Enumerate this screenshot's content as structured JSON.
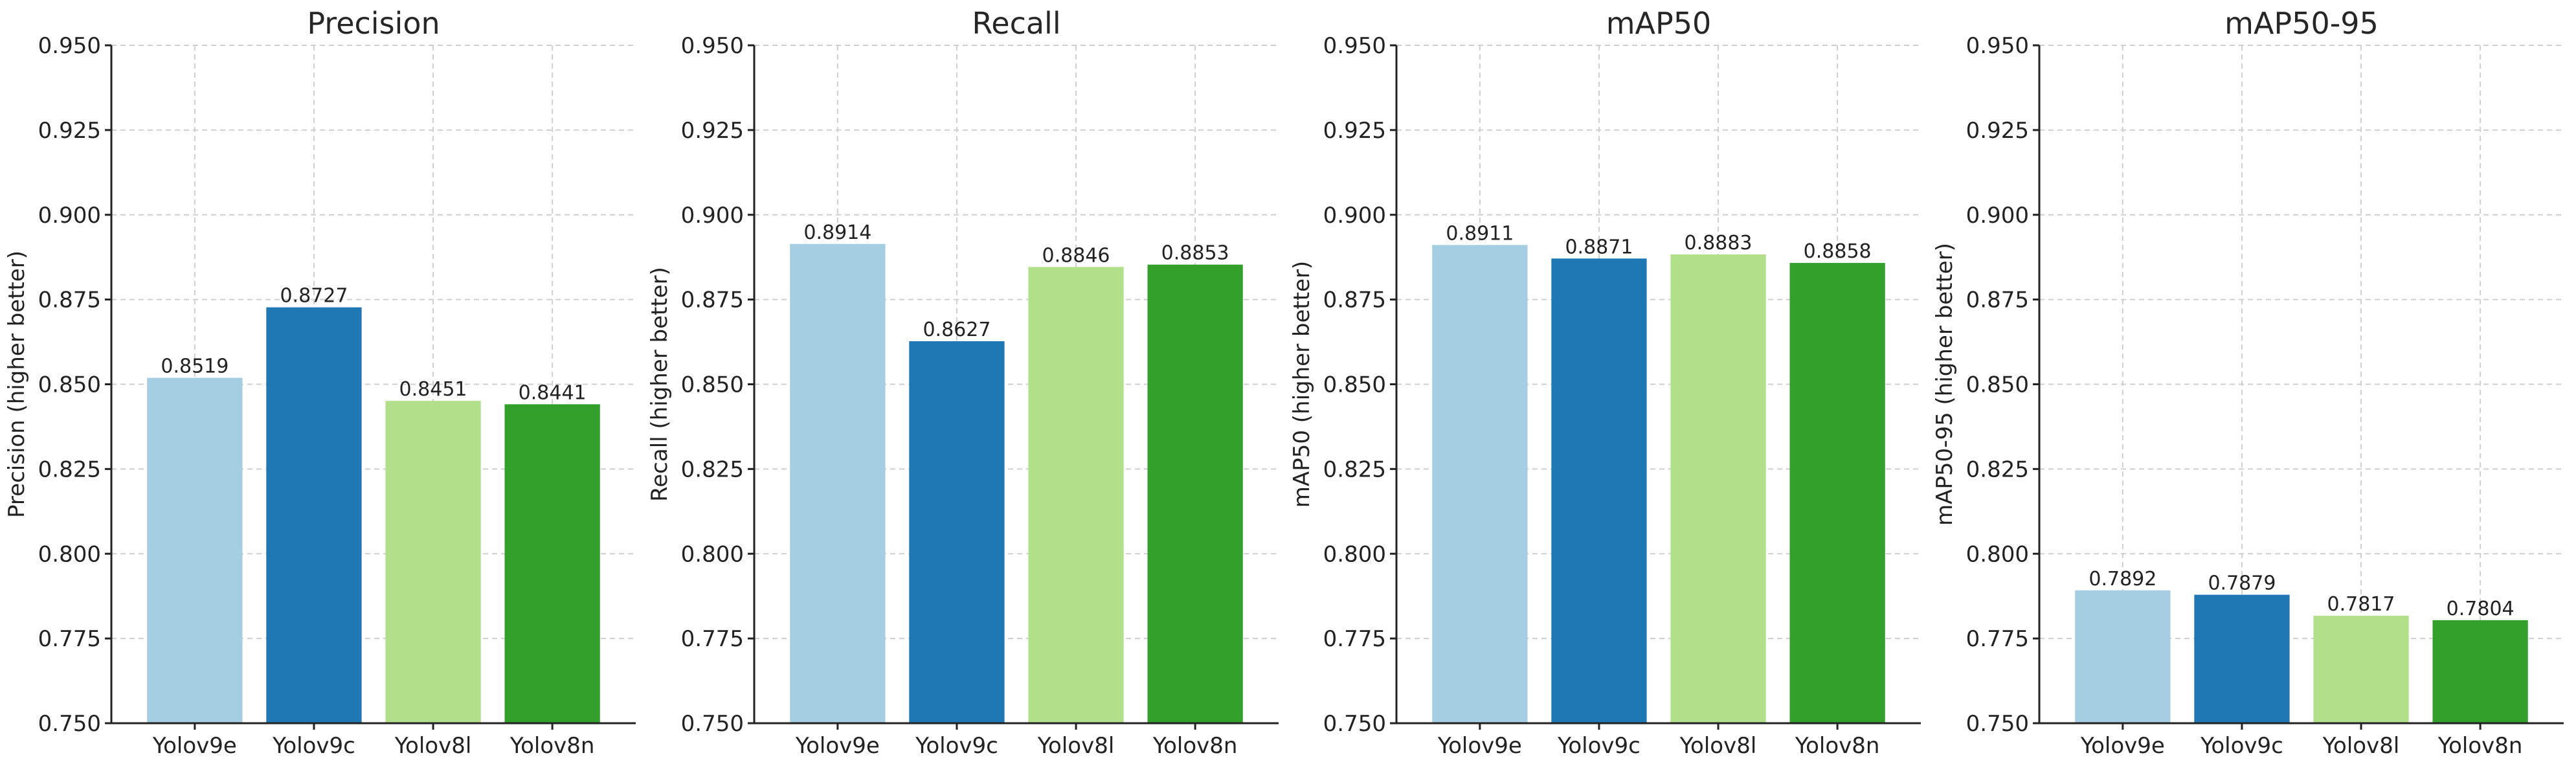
{
  "chart_data": [
    {
      "type": "bar",
      "title": "Precision",
      "ylabel": "Precision (higher better)",
      "xlabel": "",
      "categories": [
        "Yolov9e",
        "Yolov9c",
        "Yolov8l",
        "Yolov8n"
      ],
      "values": [
        0.8519,
        0.8727,
        0.8451,
        0.8441
      ],
      "value_labels": [
        "0.8519",
        "0.8727",
        "0.8451",
        "0.8441"
      ],
      "ylim": [
        0.75,
        0.95
      ],
      "yticks": [
        "0.750",
        "0.775",
        "0.800",
        "0.825",
        "0.850",
        "0.875",
        "0.900",
        "0.925",
        "0.950"
      ],
      "grid": true
    },
    {
      "type": "bar",
      "title": "Recall",
      "ylabel": "Recall (higher better)",
      "xlabel": "",
      "categories": [
        "Yolov9e",
        "Yolov9c",
        "Yolov8l",
        "Yolov8n"
      ],
      "values": [
        0.8914,
        0.8627,
        0.8846,
        0.8853
      ],
      "value_labels": [
        "0.8914",
        "0.8627",
        "0.8846",
        "0.8853"
      ],
      "ylim": [
        0.75,
        0.95
      ],
      "yticks": [
        "0.750",
        "0.775",
        "0.800",
        "0.825",
        "0.850",
        "0.875",
        "0.900",
        "0.925",
        "0.950"
      ],
      "grid": true
    },
    {
      "type": "bar",
      "title": "mAP50",
      "ylabel": "mAP50 (higher better)",
      "xlabel": "",
      "categories": [
        "Yolov9e",
        "Yolov9c",
        "Yolov8l",
        "Yolov8n"
      ],
      "values": [
        0.8911,
        0.8871,
        0.8883,
        0.8858
      ],
      "value_labels": [
        "0.8911",
        "0.8871",
        "0.8883",
        "0.8858"
      ],
      "ylim": [
        0.75,
        0.95
      ],
      "yticks": [
        "0.750",
        "0.775",
        "0.800",
        "0.825",
        "0.850",
        "0.875",
        "0.900",
        "0.925",
        "0.950"
      ],
      "grid": true
    },
    {
      "type": "bar",
      "title": "mAP50-95",
      "ylabel": "mAP50-95 (higher better)",
      "xlabel": "",
      "categories": [
        "Yolov9e",
        "Yolov9c",
        "Yolov8l",
        "Yolov8n"
      ],
      "values": [
        0.7892,
        0.7879,
        0.7817,
        0.7804
      ],
      "value_labels": [
        "0.7892",
        "0.7879",
        "0.7817",
        "0.7804"
      ],
      "ylim": [
        0.75,
        0.95
      ],
      "yticks": [
        "0.750",
        "0.775",
        "0.800",
        "0.825",
        "0.850",
        "0.875",
        "0.900",
        "0.925",
        "0.950"
      ],
      "grid": true
    }
  ],
  "colors": {
    "bars": [
      "#a6cee3",
      "#1f78b4",
      "#b2df8a",
      "#33a02c"
    ],
    "grid": "#cfcfcf",
    "axis": "#222222",
    "text": "#222222"
  }
}
